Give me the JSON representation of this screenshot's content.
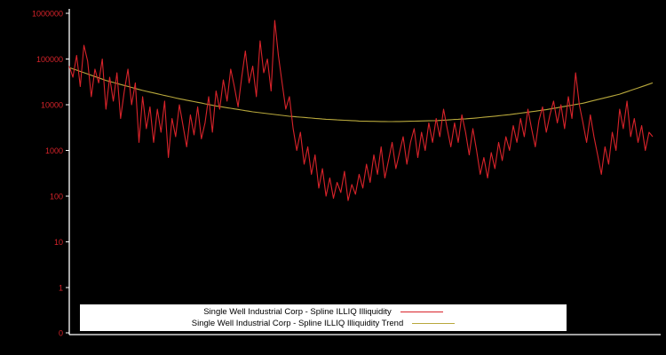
{
  "chart_data": {
    "type": "line",
    "title": "",
    "xlabel": "",
    "ylabel": "",
    "y_axis": {
      "scale": "log",
      "ticks": [
        "1000000",
        "100000",
        "10000",
        "1000",
        "100",
        "10",
        "1",
        "0"
      ],
      "range": [
        0,
        1000000
      ]
    },
    "x_axis": {
      "ticks": [],
      "label": ""
    },
    "grid": false,
    "colors": {
      "background": "#000000",
      "axis": "#ffffff",
      "tick_labels": "#d8232a"
    },
    "legend": {
      "position": "bottom-center",
      "background": "#ffffff",
      "text_color": "#000000"
    },
    "series": [
      {
        "name": "Single Well Industrial Corp - Spline ILLIQ Illiquidity",
        "color": "#d8232a",
        "values": [
          70000,
          40000,
          120000,
          25000,
          200000,
          90000,
          15000,
          60000,
          30000,
          100000,
          8000,
          40000,
          12000,
          50000,
          5000,
          20000,
          60000,
          10000,
          30000,
          1500,
          15000,
          3000,
          9000,
          1500,
          8000,
          2500,
          12000,
          700,
          5000,
          2000,
          10000,
          3500,
          1200,
          6000,
          2200,
          9000,
          1800,
          4000,
          15000,
          2500,
          20000,
          8000,
          35000,
          12000,
          60000,
          25000,
          9000,
          40000,
          150000,
          30000,
          70000,
          15000,
          250000,
          50000,
          100000,
          20000,
          700000,
          120000,
          30000,
          8000,
          15000,
          3000,
          1000,
          2500,
          500,
          1200,
          300,
          800,
          150,
          400,
          100,
          250,
          90,
          200,
          120,
          350,
          80,
          180,
          110,
          300,
          150,
          500,
          200,
          800,
          300,
          1200,
          250,
          600,
          1500,
          400,
          900,
          2000,
          500,
          1500,
          3000,
          700,
          2500,
          1000,
          4000,
          1500,
          5000,
          2000,
          8000,
          3000,
          1200,
          4000,
          1500,
          6000,
          2500,
          800,
          3000,
          1000,
          300,
          700,
          250,
          900,
          400,
          1500,
          600,
          2000,
          1000,
          3500,
          1500,
          5000,
          2000,
          8000,
          3000,
          1200,
          4500,
          9000,
          2500,
          6000,
          12000,
          4000,
          10000,
          3000,
          15000,
          5000,
          50000,
          10000,
          4000,
          1500,
          6000,
          2000,
          800,
          300,
          1200,
          500,
          2500,
          1000,
          8000,
          3000,
          12000,
          2000,
          5000,
          1500,
          3500,
          1000,
          2500,
          2000
        ]
      },
      {
        "name": "Single Well Industrial Corp - Spline ILLIQ Illiquidity Trend",
        "color": "#b8a83c",
        "x_index": [
          0,
          10,
          20,
          30,
          40,
          50,
          60,
          70,
          80,
          88,
          100,
          110,
          120,
          130,
          140,
          150,
          159
        ],
        "values": [
          65000,
          34000,
          20500,
          13500,
          9400,
          7000,
          5600,
          4800,
          4360,
          4270,
          4480,
          5040,
          6060,
          7800,
          10800,
          17000,
          30000
        ]
      }
    ]
  }
}
